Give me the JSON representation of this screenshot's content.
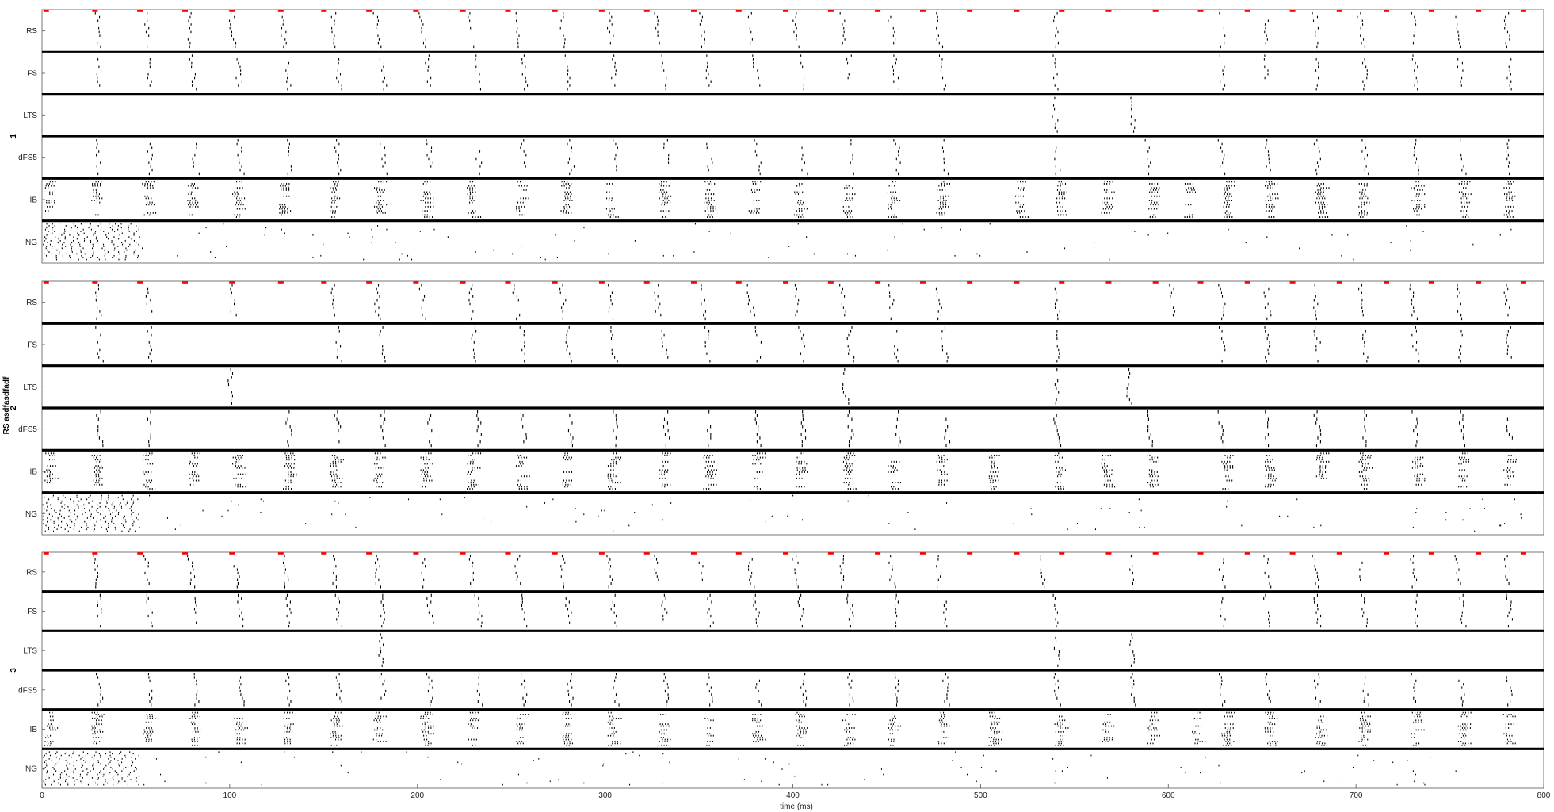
{
  "chart_data": {
    "type": "scatter",
    "subtype": "spike raster",
    "side_title": "RS asdfasdfadf",
    "xlabel": "time (ms)",
    "xlim": [
      0,
      800
    ],
    "xticks": [
      0,
      100,
      200,
      300,
      400,
      500,
      600,
      700,
      800
    ],
    "populations": [
      "RS",
      "FS",
      "LTS",
      "dFS5",
      "IB",
      "NG"
    ],
    "stimulus_color": "#ff0000",
    "spike_color": "#000000",
    "separator_color": "#000000",
    "stimulus_ms": [
      2,
      28,
      52,
      76,
      101,
      127,
      150,
      174,
      199,
      224,
      248,
      273,
      298,
      322,
      347,
      371,
      396,
      420,
      445,
      469,
      494,
      519,
      543,
      568,
      593,
      617,
      642,
      666,
      691,
      716,
      740,
      765,
      789
    ],
    "panels": [
      {
        "label": "1",
        "volleys": {
          "RS": [
            29,
            55,
            78,
            101,
            128,
            155,
            178,
            202,
            228,
            253,
            277,
            302,
            327,
            351,
            377,
            401,
            426,
            452,
            477,
            540,
            628,
            652,
            678,
            702,
            730,
            754,
            780
          ],
          "FS": [
            30,
            56,
            80,
            104,
            130,
            157,
            181,
            205,
            231,
            256,
            280,
            304,
            331,
            354,
            380,
            404,
            430,
            454,
            479,
            539,
            628,
            652,
            679,
            704,
            731,
            755,
            781
          ],
          "LTS": [
            539,
            580
          ],
          "dFS5": [
            29,
            57,
            81,
            105,
            131,
            157,
            181,
            206,
            232,
            256,
            281,
            305,
            332,
            355,
            381,
            405,
            430,
            455,
            480,
            540,
            589,
            628,
            652,
            679,
            704,
            731,
            756,
            781
          ],
          "IB": [
            3,
            28,
            55,
            79,
            103,
            128,
            155,
            178,
            203,
            228,
            254,
            278,
            302,
            330,
            354,
            378,
            402,
            428,
            452,
            478,
            520,
            541,
            566,
            590,
            610,
            630,
            653,
            680,
            703,
            731,
            756,
            780
          ]
        }
      },
      {
        "label": "2",
        "volleys": {
          "RS": [
            29,
            56,
            101,
            155,
            178,
            202,
            228,
            252,
            277,
            302,
            327,
            351,
            377,
            401,
            426,
            452,
            477,
            540,
            602,
            628,
            652,
            678,
            702,
            730,
            754,
            780
          ],
          "FS": [
            30,
            57,
            157,
            181,
            230,
            256,
            280,
            304,
            331,
            354,
            381,
            404,
            430,
            454,
            480,
            540,
            628,
            652,
            679,
            704,
            731,
            755,
            781
          ],
          "LTS": [
            100,
            427,
            540,
            578
          ],
          "dFS5": [
            30,
            57,
            131,
            157,
            181,
            206,
            232,
            256,
            281,
            305,
            332,
            355,
            381,
            405,
            430,
            455,
            481,
            540,
            589,
            628,
            652,
            679,
            704,
            731,
            756,
            781
          ],
          "IB": [
            3,
            28,
            55,
            80,
            103,
            130,
            155,
            178,
            203,
            228,
            254,
            278,
            303,
            330,
            354,
            380,
            403,
            428,
            452,
            478,
            506,
            541,
            566,
            590,
            630,
            653,
            680,
            703,
            731,
            756,
            780
          ]
        }
      },
      {
        "label": "3",
        "volleys": {
          "RS": [
            28,
            55,
            79,
            103,
            129,
            155,
            178,
            203,
            228,
            253,
            277,
            302,
            327,
            351,
            377,
            401,
            426,
            452,
            477,
            532,
            580,
            628,
            652,
            678,
            702,
            730,
            754,
            780
          ],
          "FS": [
            30,
            57,
            81,
            105,
            131,
            157,
            181,
            206,
            232,
            256,
            280,
            304,
            331,
            355,
            380,
            404,
            430,
            455,
            480,
            540,
            628,
            652,
            679,
            704,
            731,
            756,
            781
          ],
          "LTS": [
            180,
            540,
            580
          ],
          "dFS5": [
            30,
            57,
            81,
            105,
            131,
            157,
            181,
            206,
            232,
            256,
            281,
            305,
            332,
            355,
            381,
            405,
            430,
            455,
            481,
            540,
            580,
            628,
            652,
            679,
            704,
            731,
            756,
            781
          ],
          "IB": [
            3,
            28,
            55,
            80,
            104,
            130,
            155,
            178,
            203,
            228,
            254,
            278,
            303,
            330,
            354,
            380,
            403,
            428,
            452,
            478,
            506,
            541,
            566,
            590,
            614,
            630,
            653,
            680,
            703,
            731,
            756,
            780
          ]
        }
      }
    ],
    "NG_dense_window_ms": [
      0,
      52
    ],
    "NG_sparse_rate_per_ms": 0.12
  }
}
